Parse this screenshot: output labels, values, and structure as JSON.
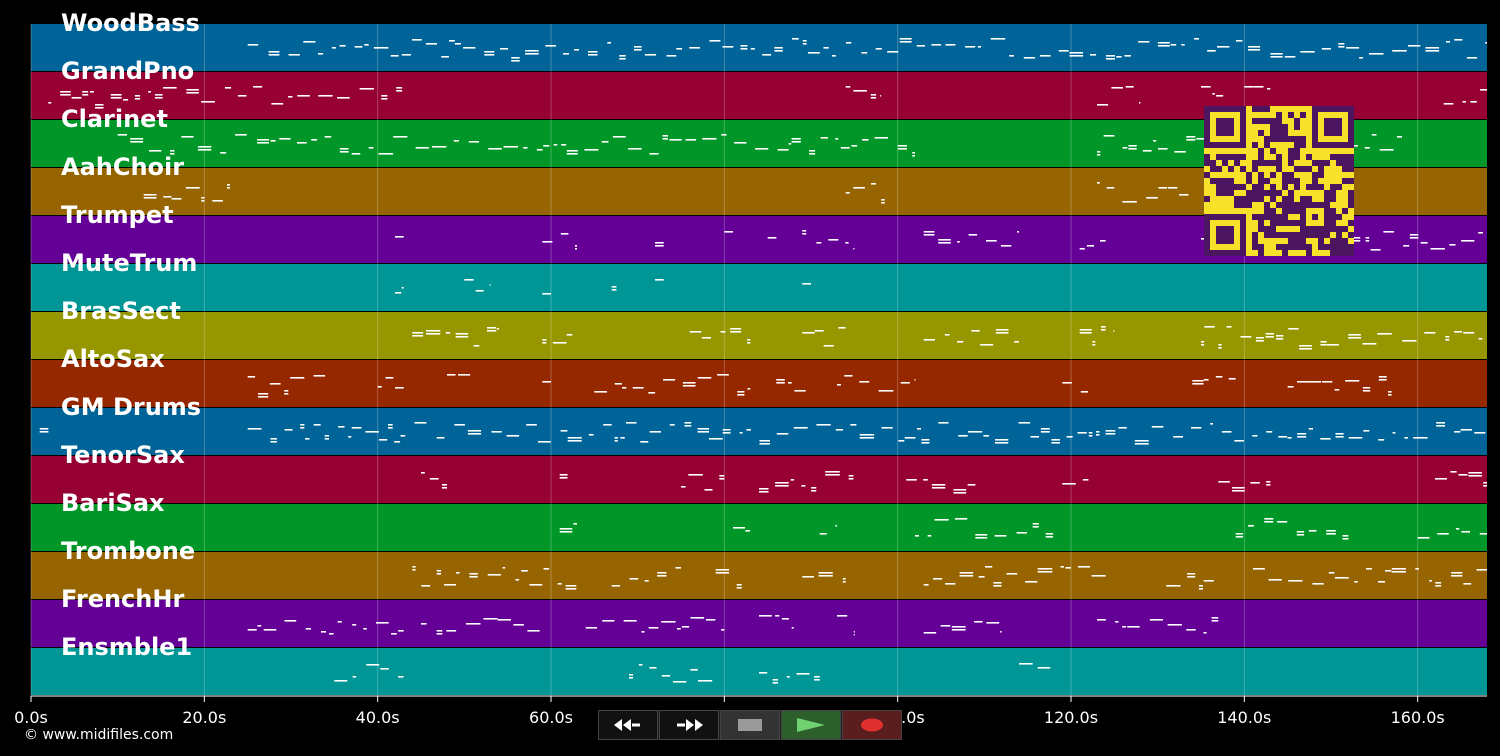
{
  "app": {
    "credit": "© www.midifiles.com"
  },
  "colors": {
    "background": "#000000",
    "note": "#ffffff",
    "grid": "#ffffff",
    "qr_fg": "#4b1560",
    "qr_bg": "#f8e12a"
  },
  "timeline": {
    "max_seconds": 168,
    "ticks": [
      {
        "value": 0,
        "label": "0.0s"
      },
      {
        "value": 20,
        "label": "20.0s"
      },
      {
        "value": 40,
        "label": "40.0s"
      },
      {
        "value": 60,
        "label": "60.0s"
      },
      {
        "value": 80,
        "label": "80.0"
      },
      {
        "value": 100,
        "label": "100.0s"
      },
      {
        "value": 120,
        "label": "120.0s"
      },
      {
        "value": 140,
        "label": "140.0s"
      },
      {
        "value": 160,
        "label": "160.0s"
      }
    ]
  },
  "tracks": [
    {
      "name": "WoodBass",
      "color": "#006498",
      "activity": [
        [
          25,
          168
        ]
      ]
    },
    {
      "name": "GrandPno",
      "color": "#960032",
      "activity": [
        [
          2,
          43
        ],
        [
          94,
          98
        ],
        [
          123,
          128
        ],
        [
          135,
          138
        ],
        [
          140,
          143
        ],
        [
          163,
          168
        ]
      ]
    },
    {
      "name": "Clarinet",
      "color": "#009628",
      "activity": [
        [
          10,
          102
        ],
        [
          123,
          159
        ]
      ]
    },
    {
      "name": "AahChoir",
      "color": "#966400",
      "activity": [
        [
          13,
          23
        ],
        [
          94,
          99
        ],
        [
          123,
          134
        ]
      ]
    },
    {
      "name": "Trumpet",
      "color": "#640096",
      "activity": [
        [
          42,
          43
        ],
        [
          59,
          63
        ],
        [
          72,
          73
        ],
        [
          80,
          81
        ],
        [
          85,
          86
        ],
        [
          89,
          95
        ],
        [
          103,
          114
        ],
        [
          121,
          124
        ],
        [
          135,
          168
        ]
      ]
    },
    {
      "name": "MuteTrum",
      "color": "#009696",
      "activity": [
        [
          42,
          43
        ],
        [
          50,
          53
        ],
        [
          59,
          60
        ],
        [
          67,
          68
        ],
        [
          72,
          73
        ],
        [
          89,
          90
        ]
      ]
    },
    {
      "name": "BrasSect",
      "color": "#969600",
      "activity": [
        [
          44,
          54
        ],
        [
          59,
          63
        ],
        [
          76,
          83
        ],
        [
          89,
          94
        ],
        [
          103,
          114
        ],
        [
          121,
          125
        ],
        [
          135,
          168
        ]
      ]
    },
    {
      "name": "AltoSax",
      "color": "#962800",
      "activity": [
        [
          25,
          34
        ],
        [
          40,
          43
        ],
        [
          48,
          51
        ],
        [
          59,
          60
        ],
        [
          65,
          83
        ],
        [
          86,
          90
        ],
        [
          93,
          102
        ],
        [
          119,
          122
        ],
        [
          134,
          139
        ],
        [
          145,
          157
        ]
      ]
    },
    {
      "name": "GM Drums",
      "color": "#006498",
      "activity": [
        [
          1,
          2
        ],
        [
          25,
          168
        ]
      ]
    },
    {
      "name": "TenorSax",
      "color": "#960032",
      "activity": [
        [
          45,
          48
        ],
        [
          61,
          62
        ],
        [
          75,
          80
        ],
        [
          84,
          95
        ],
        [
          101,
          110
        ],
        [
          119,
          122
        ],
        [
          137,
          143
        ],
        [
          162,
          168
        ]
      ]
    },
    {
      "name": "BariSax",
      "color": "#009628",
      "activity": [
        [
          61,
          63
        ],
        [
          81,
          83
        ],
        [
          91,
          93
        ],
        [
          102,
          118
        ],
        [
          139,
          152
        ],
        [
          160,
          168
        ]
      ]
    },
    {
      "name": "Trombone",
      "color": "#966400",
      "activity": [
        [
          44,
          63
        ],
        [
          67,
          75
        ],
        [
          79,
          82
        ],
        [
          89,
          94
        ],
        [
          103,
          124
        ],
        [
          131,
          137
        ],
        [
          141,
          168
        ]
      ]
    },
    {
      "name": "FrenchHr",
      "color": "#640096",
      "activity": [
        [
          25,
          43
        ],
        [
          45,
          59
        ],
        [
          64,
          80
        ],
        [
          84,
          88
        ],
        [
          93,
          95
        ],
        [
          103,
          112
        ],
        [
          123,
          137
        ]
      ]
    },
    {
      "name": "Ensmble1",
      "color": "#009696",
      "activity": [
        [
          35,
          43
        ],
        [
          69,
          79
        ],
        [
          84,
          91
        ],
        [
          114,
          118
        ]
      ]
    }
  ],
  "transport": {
    "rewind_icon": "rewind-icon",
    "fast_forward_icon": "fast-forward-icon",
    "stop_icon": "stop-icon",
    "play_icon": "play-icon",
    "record_icon": "record-icon"
  }
}
